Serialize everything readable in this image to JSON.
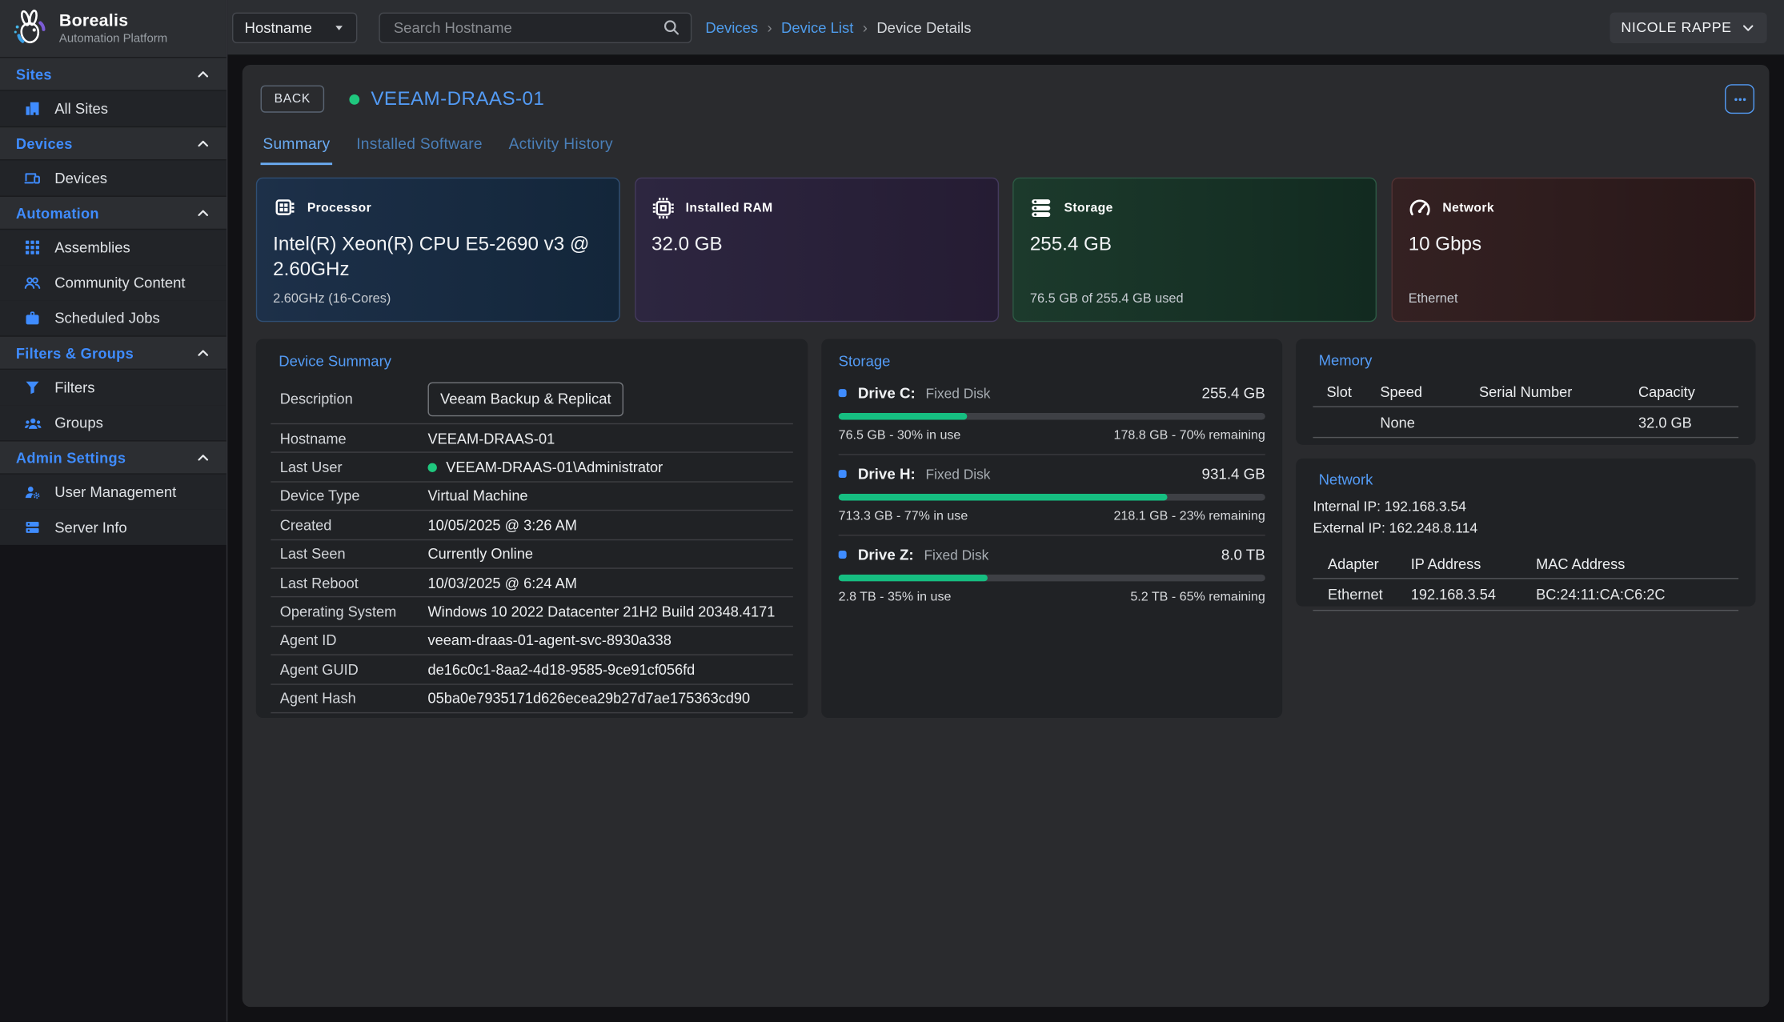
{
  "brand": {
    "name": "Borealis",
    "subtitle": "Automation Platform"
  },
  "topbar": {
    "filter_dropdown": {
      "value": "Hostname"
    },
    "search": {
      "placeholder": "Search Hostname"
    },
    "breadcrumbs": [
      {
        "label": "Devices",
        "link": true
      },
      {
        "label": "Device List",
        "link": true
      },
      {
        "label": "Device Details",
        "link": false
      }
    ],
    "user_menu": {
      "label": "NICOLE RAPPE"
    }
  },
  "sidebar": {
    "sections": [
      {
        "label": "Sites",
        "items": [
          {
            "label": "All Sites",
            "icon": "building-icon"
          }
        ]
      },
      {
        "label": "Devices",
        "items": [
          {
            "label": "Devices",
            "icon": "devices-icon"
          }
        ]
      },
      {
        "label": "Automation",
        "items": [
          {
            "label": "Assemblies",
            "icon": "grid-icon"
          },
          {
            "label": "Community Content",
            "icon": "people-icon"
          },
          {
            "label": "Scheduled Jobs",
            "icon": "briefcase-icon"
          }
        ]
      },
      {
        "label": "Filters & Groups",
        "items": [
          {
            "label": "Filters",
            "icon": "funnel-icon"
          },
          {
            "label": "Groups",
            "icon": "groups-icon"
          }
        ]
      },
      {
        "label": "Admin Settings",
        "items": [
          {
            "label": "User Management",
            "icon": "user-gear-icon"
          },
          {
            "label": "Server Info",
            "icon": "server-icon"
          }
        ]
      }
    ]
  },
  "page": {
    "back_button": "BACK",
    "device_title": "VEEAM-DRAAS-01",
    "device_status": "online",
    "tabs": [
      {
        "label": "Summary",
        "active": true
      },
      {
        "label": "Installed Software",
        "active": false
      },
      {
        "label": "Activity History",
        "active": false
      }
    ],
    "stat_cards": [
      {
        "icon": "cpu-icon",
        "label": "Processor",
        "value": "Intel(R) Xeon(R) CPU E5-2690 v3 @ 2.60GHz",
        "footer": "2.60GHz (16-Cores)",
        "theme": "blue"
      },
      {
        "icon": "ram-icon",
        "label": "Installed RAM",
        "value": "32.0 GB",
        "footer": "",
        "theme": "purple"
      },
      {
        "icon": "storage-icon",
        "label": "Storage",
        "value": "255.4 GB",
        "footer": "76.5 GB of 255.4 GB used",
        "theme": "green"
      },
      {
        "icon": "network-icon",
        "label": "Network",
        "value": "10 Gbps",
        "footer": "Ethernet",
        "theme": "red"
      }
    ],
    "device_summary": {
      "title": "Device Summary",
      "description_label": "Description",
      "description_value": "Veeam Backup & Replication",
      "rows": [
        {
          "label": "Hostname",
          "value": "VEEAM-DRAAS-01",
          "status_dot": false
        },
        {
          "label": "Last User",
          "value": "VEEAM-DRAAS-01\\Administrator",
          "status_dot": true
        },
        {
          "label": "Device Type",
          "value": "Virtual Machine",
          "status_dot": false
        },
        {
          "label": "Created",
          "value": "10/05/2025 @ 3:26 AM",
          "status_dot": false
        },
        {
          "label": "Last Seen",
          "value": "Currently Online",
          "status_dot": false
        },
        {
          "label": "Last Reboot",
          "value": "10/03/2025 @ 6:24 AM",
          "status_dot": false
        },
        {
          "label": "Operating System",
          "value": "Windows 10 2022 Datacenter 21H2 Build 20348.4171",
          "status_dot": false
        },
        {
          "label": "Agent ID",
          "value": "veeam-draas-01-agent-svc-8930a338",
          "status_dot": false
        },
        {
          "label": "Agent GUID",
          "value": "de16c0c1-8aa2-4d18-9585-9ce91cf056fd",
          "status_dot": false
        },
        {
          "label": "Agent Hash",
          "value": "05ba0e7935171d626ecea29b27d7ae175363cd90",
          "status_dot": false
        }
      ]
    },
    "storage_panel": {
      "title": "Storage",
      "drives": [
        {
          "name": "Drive C:",
          "type": "Fixed Disk",
          "size": "255.4 GB",
          "used_pct": 30,
          "used_text": "76.5 GB - 30% in use",
          "remaining_text": "178.8 GB - 70% remaining"
        },
        {
          "name": "Drive H:",
          "type": "Fixed Disk",
          "size": "931.4 GB",
          "used_pct": 77,
          "used_text": "713.3 GB - 77% in use",
          "remaining_text": "218.1 GB - 23% remaining"
        },
        {
          "name": "Drive Z:",
          "type": "Fixed Disk",
          "size": "8.0 TB",
          "used_pct": 35,
          "used_text": "2.8 TB - 35% in use",
          "remaining_text": "5.2 TB - 65% remaining"
        }
      ]
    },
    "memory_panel": {
      "title": "Memory",
      "columns": [
        "Slot",
        "Speed",
        "Serial Number",
        "Capacity"
      ],
      "rows": [
        [
          "",
          "None",
          "",
          "32.0 GB"
        ]
      ]
    },
    "network_panel": {
      "title": "Network",
      "internal_ip": "Internal IP: 192.168.3.54",
      "external_ip": "External IP: 162.248.8.114",
      "columns": [
        "Adapter",
        "IP Address",
        "MAC Address"
      ],
      "rows": [
        [
          "Ethernet",
          "192.168.3.54",
          "BC:24:11:CA:C6:2C"
        ]
      ]
    }
  },
  "colors": {
    "accent_blue": "#539bf5",
    "sidebar_icon_blue": "#3f8cff",
    "status_green": "#1fc77e",
    "progress_green": "#16be81"
  }
}
